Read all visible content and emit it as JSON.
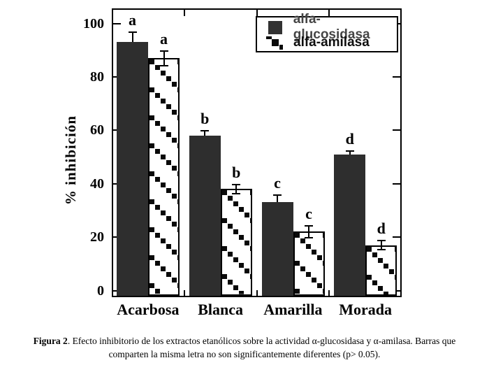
{
  "figure": {
    "caption_bold": "Figura 2",
    "caption_line1_rest": ". Efecto inhibitorio de los extractos etanólicos  sobre la actividad α-glucosidasa y α-amilasa. Barras que",
    "caption_line2": "comparten la misma letra no son significantemente diferentes (p> 0.05)."
  },
  "chart_data": {
    "type": "bar",
    "title": "",
    "xlabel": "",
    "ylabel": "% inhibición",
    "ylim": [
      0,
      105
    ],
    "yticks": [
      0,
      20,
      40,
      60,
      80,
      100
    ],
    "grid": false,
    "legend_position": "top-right",
    "categories": [
      "Acarbosa",
      "Blanca",
      "Amarilla",
      "Morada"
    ],
    "series": [
      {
        "name": "alfa-glucosidasa",
        "style": "solid",
        "values": [
          93,
          58,
          33,
          51
        ],
        "errors": [
          4,
          2,
          3,
          1.5
        ],
        "letters": [
          "a",
          "b",
          "c",
          "d"
        ]
      },
      {
        "name": "alfa-amilasa",
        "style": "hatched",
        "values": [
          87,
          38,
          22,
          17
        ],
        "errors": [
          3,
          2,
          2.5,
          2
        ],
        "letters": [
          "a",
          "b",
          "c",
          "d"
        ]
      }
    ],
    "colors": {
      "bar_fill": "#2e2e2e",
      "hatch_square": "#0a0a0a",
      "frame": "#000000",
      "background": "#ffffff"
    }
  }
}
